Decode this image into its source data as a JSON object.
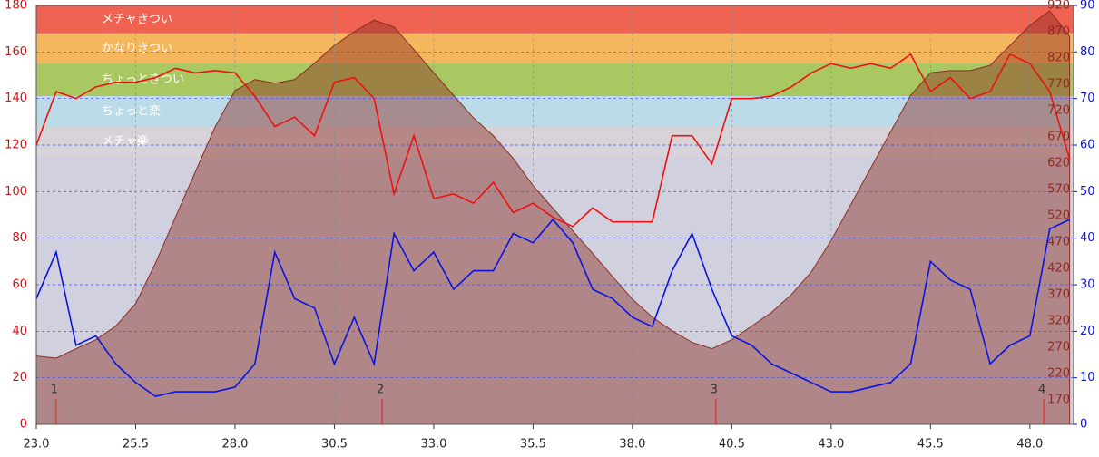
{
  "chart_data": {
    "type": "line",
    "x": [
      23.0,
      23.5,
      24.0,
      24.5,
      25.0,
      25.5,
      26.0,
      26.5,
      27.0,
      27.5,
      28.0,
      28.5,
      29.0,
      29.5,
      30.0,
      30.5,
      31.0,
      31.5,
      32.0,
      32.5,
      33.0,
      33.5,
      34.0,
      34.5,
      35.0,
      35.5,
      36.0,
      36.5,
      37.0,
      37.5,
      38.0,
      38.5,
      39.0,
      39.5,
      40.0,
      40.5,
      41.0,
      41.5,
      42.0,
      42.5,
      43.0,
      43.5,
      44.0,
      44.5,
      45.0,
      45.5,
      46.0,
      46.5,
      47.0,
      47.5,
      48.0,
      48.5,
      49.0
    ],
    "xlim": [
      23,
      49.1
    ],
    "xticks": [
      {
        "value": 23,
        "label": "23.0"
      },
      25.5,
      {
        "value": 28,
        "label": "28.0"
      },
      30.5,
      {
        "value": 33,
        "label": "33.0"
      },
      35.5,
      {
        "value": 38,
        "label": "38.0"
      },
      40.5,
      {
        "value": 43,
        "label": "43.0"
      },
      45.5,
      {
        "value": 48,
        "label": "48.0"
      }
    ],
    "ylim": [
      0,
      180
    ],
    "yticks": [
      0,
      20,
      40,
      60,
      80,
      100,
      120,
      140,
      160,
      180
    ],
    "y2lim": [
      123,
      920
    ],
    "y2ticks": [
      170,
      220,
      270,
      320,
      370,
      420,
      470,
      520,
      570,
      620,
      670,
      720,
      770,
      820,
      870,
      920
    ],
    "y3lim": [
      0,
      90
    ],
    "y3ticks": [
      0,
      10,
      20,
      30,
      40,
      50,
      60,
      70,
      80,
      90
    ],
    "grid": true,
    "zones": [
      {
        "label": "メチャきつい",
        "from": 168,
        "to": 180,
        "color": "#f06252"
      },
      {
        "label": "かなりきつい",
        "from": 155,
        "to": 168,
        "color": "#f5b75e"
      },
      {
        "label": "ちょっときつい",
        "from": 141,
        "to": 155,
        "color": "#a9c862"
      },
      {
        "label": "ちょっと楽",
        "from": 128,
        "to": 141,
        "color": "#bcdbe8"
      },
      {
        "label": "メチャ楽",
        "from": 115,
        "to": 128,
        "color": "#d8d3d8"
      }
    ],
    "markers": [
      {
        "x": 23.5,
        "label": "1"
      },
      {
        "x": 31.7,
        "label": "2"
      },
      {
        "x": 40.1,
        "label": "3"
      },
      {
        "x": 48.35,
        "label": "4"
      }
    ],
    "series": [
      {
        "type": "area",
        "axis": "y2",
        "color": "#8c2d22",
        "values": [
          253,
          249,
          267,
          284,
          310,
          353,
          430,
          517,
          603,
          689,
          758,
          779,
          772,
          779,
          810,
          844,
          870,
          892,
          879,
          836,
          792,
          749,
          706,
          672,
          629,
          577,
          534,
          491,
          448,
          404,
          361,
          327,
          301,
          279,
          267,
          284,
          310,
          336,
          370,
          413,
          473,
          542,
          611,
          680,
          749,
          792,
          796,
          796,
          806,
          844,
          882,
          910,
          861
        ]
      },
      {
        "type": "line",
        "axis": "y",
        "color": "#ee1111",
        "values": [
          120,
          143,
          140,
          145,
          147,
          147,
          149,
          153,
          151,
          152,
          151,
          141,
          128,
          132,
          124,
          147,
          149,
          140,
          99,
          124,
          97,
          99,
          95,
          104,
          91,
          95,
          89,
          85,
          93,
          87,
          87,
          87,
          124,
          124,
          112,
          140,
          140,
          141,
          145,
          151,
          155,
          153,
          155,
          153,
          159,
          143,
          149,
          140,
          143,
          159,
          155,
          143,
          114
        ]
      },
      {
        "type": "line",
        "axis": "y3",
        "color": "#0a14e0",
        "values": [
          27,
          37,
          17,
          19,
          13,
          9,
          6,
          7,
          7,
          7,
          8,
          13,
          37,
          27,
          25,
          13,
          23,
          13,
          41,
          33,
          37,
          29,
          33,
          33,
          41,
          39,
          44,
          39,
          29,
          27,
          23,
          21,
          33,
          41,
          29,
          19,
          17,
          13,
          11,
          9,
          7,
          7,
          8,
          9,
          13,
          35,
          31,
          29,
          13,
          17,
          19,
          42,
          44
        ]
      }
    ]
  }
}
